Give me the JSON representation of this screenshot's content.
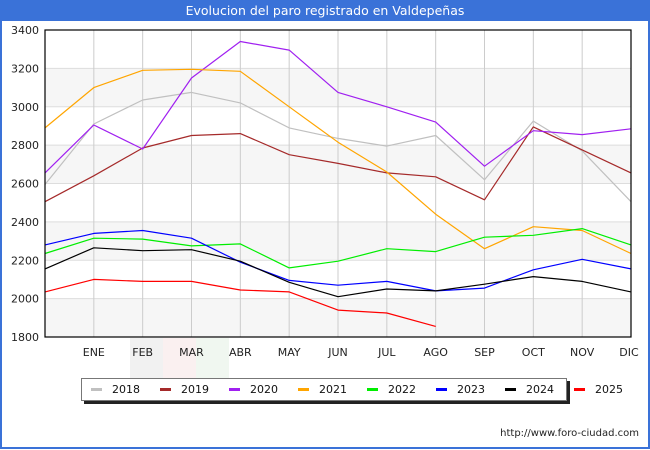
{
  "header": {
    "title": "Evolucion del paro registrado en Valdepeñas"
  },
  "footer": {
    "credit": "http://www.foro-ciudad.com"
  },
  "watermark": {
    "stripes": [
      "#e6e6e6",
      "#f6e4e4",
      "#e4f1e4"
    ]
  },
  "chart_data": {
    "type": "line",
    "title": "Evolucion del paro registrado en Valdepeñas",
    "xlabel": "",
    "ylabel": "",
    "x": [
      "",
      "ENE",
      "FEB",
      "MAR",
      "ABR",
      "MAY",
      "JUN",
      "JUL",
      "AGO",
      "SEP",
      "OCT",
      "NOV",
      "DIC"
    ],
    "ylim": [
      1800,
      3400
    ],
    "yticks": [
      1800,
      2000,
      2200,
      2400,
      2600,
      2800,
      3000,
      3200,
      3400
    ],
    "grid": true,
    "legend_position": "bottom",
    "series": [
      {
        "name": "2018",
        "color": "#c0c0c0",
        "values": [
          2595,
          2910,
          3035,
          3075,
          3020,
          2890,
          2835,
          2795,
          2850,
          2620,
          2925,
          2770,
          2505
        ]
      },
      {
        "name": "2019",
        "color": "#a52a2a",
        "values": [
          2505,
          2640,
          2785,
          2850,
          2860,
          2750,
          2705,
          2655,
          2635,
          2515,
          2895,
          2775,
          2655
        ]
      },
      {
        "name": "2020",
        "color": "#a020f0",
        "values": [
          2655,
          2905,
          2780,
          3150,
          3340,
          3295,
          3075,
          3000,
          2920,
          2690,
          2875,
          2855,
          2885
        ]
      },
      {
        "name": "2021",
        "color": "#ffa500",
        "values": [
          2890,
          3100,
          3190,
          3195,
          3185,
          3000,
          2815,
          2660,
          2440,
          2260,
          2375,
          2355,
          2235
        ]
      },
      {
        "name": "2022",
        "color": "#00ee00",
        "values": [
          2235,
          2315,
          2310,
          2275,
          2285,
          2160,
          2195,
          2260,
          2245,
          2320,
          2330,
          2365,
          2280
        ]
      },
      {
        "name": "2023",
        "color": "#0000ff",
        "values": [
          2280,
          2340,
          2355,
          2315,
          2190,
          2095,
          2070,
          2090,
          2040,
          2055,
          2150,
          2205,
          2155
        ]
      },
      {
        "name": "2024",
        "color": "#000000",
        "values": [
          2155,
          2265,
          2250,
          2255,
          2195,
          2085,
          2010,
          2050,
          2040,
          2075,
          2115,
          2090,
          2035
        ]
      },
      {
        "name": "2025",
        "color": "#ff0000",
        "values": [
          2035,
          2100,
          2090,
          2090,
          2045,
          2035,
          1940,
          1925,
          1855,
          null,
          null,
          null,
          null
        ]
      }
    ]
  }
}
